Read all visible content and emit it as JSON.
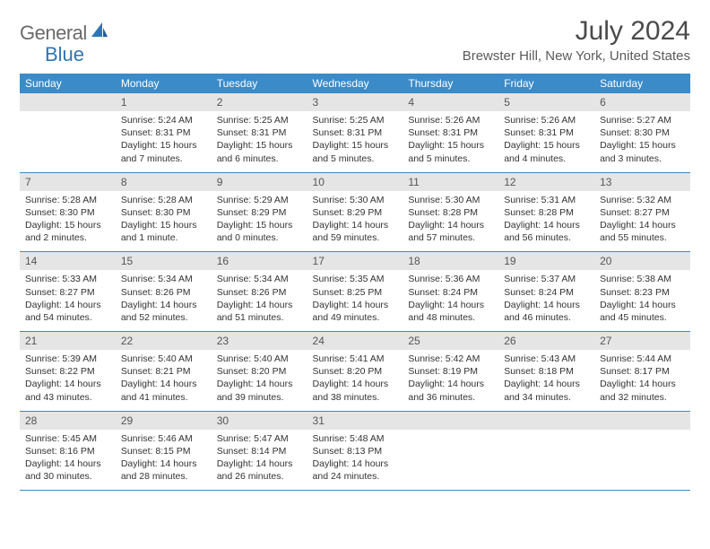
{
  "logo": {
    "part1": "General",
    "part2": "Blue"
  },
  "title": "July 2024",
  "location": "Brewster Hill, New York, United States",
  "header_bg": "#3b8bc9",
  "daynum_bg": "#e5e5e5",
  "weekdays": [
    "Sunday",
    "Monday",
    "Tuesday",
    "Wednesday",
    "Thursday",
    "Friday",
    "Saturday"
  ],
  "weeks": [
    [
      {
        "day": "",
        "sunrise": "",
        "sunset": "",
        "daylight": ""
      },
      {
        "day": "1",
        "sunrise": "Sunrise: 5:24 AM",
        "sunset": "Sunset: 8:31 PM",
        "daylight": "Daylight: 15 hours and 7 minutes."
      },
      {
        "day": "2",
        "sunrise": "Sunrise: 5:25 AM",
        "sunset": "Sunset: 8:31 PM",
        "daylight": "Daylight: 15 hours and 6 minutes."
      },
      {
        "day": "3",
        "sunrise": "Sunrise: 5:25 AM",
        "sunset": "Sunset: 8:31 PM",
        "daylight": "Daylight: 15 hours and 5 minutes."
      },
      {
        "day": "4",
        "sunrise": "Sunrise: 5:26 AM",
        "sunset": "Sunset: 8:31 PM",
        "daylight": "Daylight: 15 hours and 5 minutes."
      },
      {
        "day": "5",
        "sunrise": "Sunrise: 5:26 AM",
        "sunset": "Sunset: 8:31 PM",
        "daylight": "Daylight: 15 hours and 4 minutes."
      },
      {
        "day": "6",
        "sunrise": "Sunrise: 5:27 AM",
        "sunset": "Sunset: 8:30 PM",
        "daylight": "Daylight: 15 hours and 3 minutes."
      }
    ],
    [
      {
        "day": "7",
        "sunrise": "Sunrise: 5:28 AM",
        "sunset": "Sunset: 8:30 PM",
        "daylight": "Daylight: 15 hours and 2 minutes."
      },
      {
        "day": "8",
        "sunrise": "Sunrise: 5:28 AM",
        "sunset": "Sunset: 8:30 PM",
        "daylight": "Daylight: 15 hours and 1 minute."
      },
      {
        "day": "9",
        "sunrise": "Sunrise: 5:29 AM",
        "sunset": "Sunset: 8:29 PM",
        "daylight": "Daylight: 15 hours and 0 minutes."
      },
      {
        "day": "10",
        "sunrise": "Sunrise: 5:30 AM",
        "sunset": "Sunset: 8:29 PM",
        "daylight": "Daylight: 14 hours and 59 minutes."
      },
      {
        "day": "11",
        "sunrise": "Sunrise: 5:30 AM",
        "sunset": "Sunset: 8:28 PM",
        "daylight": "Daylight: 14 hours and 57 minutes."
      },
      {
        "day": "12",
        "sunrise": "Sunrise: 5:31 AM",
        "sunset": "Sunset: 8:28 PM",
        "daylight": "Daylight: 14 hours and 56 minutes."
      },
      {
        "day": "13",
        "sunrise": "Sunrise: 5:32 AM",
        "sunset": "Sunset: 8:27 PM",
        "daylight": "Daylight: 14 hours and 55 minutes."
      }
    ],
    [
      {
        "day": "14",
        "sunrise": "Sunrise: 5:33 AM",
        "sunset": "Sunset: 8:27 PM",
        "daylight": "Daylight: 14 hours and 54 minutes."
      },
      {
        "day": "15",
        "sunrise": "Sunrise: 5:34 AM",
        "sunset": "Sunset: 8:26 PM",
        "daylight": "Daylight: 14 hours and 52 minutes."
      },
      {
        "day": "16",
        "sunrise": "Sunrise: 5:34 AM",
        "sunset": "Sunset: 8:26 PM",
        "daylight": "Daylight: 14 hours and 51 minutes."
      },
      {
        "day": "17",
        "sunrise": "Sunrise: 5:35 AM",
        "sunset": "Sunset: 8:25 PM",
        "daylight": "Daylight: 14 hours and 49 minutes."
      },
      {
        "day": "18",
        "sunrise": "Sunrise: 5:36 AM",
        "sunset": "Sunset: 8:24 PM",
        "daylight": "Daylight: 14 hours and 48 minutes."
      },
      {
        "day": "19",
        "sunrise": "Sunrise: 5:37 AM",
        "sunset": "Sunset: 8:24 PM",
        "daylight": "Daylight: 14 hours and 46 minutes."
      },
      {
        "day": "20",
        "sunrise": "Sunrise: 5:38 AM",
        "sunset": "Sunset: 8:23 PM",
        "daylight": "Daylight: 14 hours and 45 minutes."
      }
    ],
    [
      {
        "day": "21",
        "sunrise": "Sunrise: 5:39 AM",
        "sunset": "Sunset: 8:22 PM",
        "daylight": "Daylight: 14 hours and 43 minutes."
      },
      {
        "day": "22",
        "sunrise": "Sunrise: 5:40 AM",
        "sunset": "Sunset: 8:21 PM",
        "daylight": "Daylight: 14 hours and 41 minutes."
      },
      {
        "day": "23",
        "sunrise": "Sunrise: 5:40 AM",
        "sunset": "Sunset: 8:20 PM",
        "daylight": "Daylight: 14 hours and 39 minutes."
      },
      {
        "day": "24",
        "sunrise": "Sunrise: 5:41 AM",
        "sunset": "Sunset: 8:20 PM",
        "daylight": "Daylight: 14 hours and 38 minutes."
      },
      {
        "day": "25",
        "sunrise": "Sunrise: 5:42 AM",
        "sunset": "Sunset: 8:19 PM",
        "daylight": "Daylight: 14 hours and 36 minutes."
      },
      {
        "day": "26",
        "sunrise": "Sunrise: 5:43 AM",
        "sunset": "Sunset: 8:18 PM",
        "daylight": "Daylight: 14 hours and 34 minutes."
      },
      {
        "day": "27",
        "sunrise": "Sunrise: 5:44 AM",
        "sunset": "Sunset: 8:17 PM",
        "daylight": "Daylight: 14 hours and 32 minutes."
      }
    ],
    [
      {
        "day": "28",
        "sunrise": "Sunrise: 5:45 AM",
        "sunset": "Sunset: 8:16 PM",
        "daylight": "Daylight: 14 hours and 30 minutes."
      },
      {
        "day": "29",
        "sunrise": "Sunrise: 5:46 AM",
        "sunset": "Sunset: 8:15 PM",
        "daylight": "Daylight: 14 hours and 28 minutes."
      },
      {
        "day": "30",
        "sunrise": "Sunrise: 5:47 AM",
        "sunset": "Sunset: 8:14 PM",
        "daylight": "Daylight: 14 hours and 26 minutes."
      },
      {
        "day": "31",
        "sunrise": "Sunrise: 5:48 AM",
        "sunset": "Sunset: 8:13 PM",
        "daylight": "Daylight: 14 hours and 24 minutes."
      },
      {
        "day": "",
        "sunrise": "",
        "sunset": "",
        "daylight": ""
      },
      {
        "day": "",
        "sunrise": "",
        "sunset": "",
        "daylight": ""
      },
      {
        "day": "",
        "sunrise": "",
        "sunset": "",
        "daylight": ""
      }
    ]
  ]
}
